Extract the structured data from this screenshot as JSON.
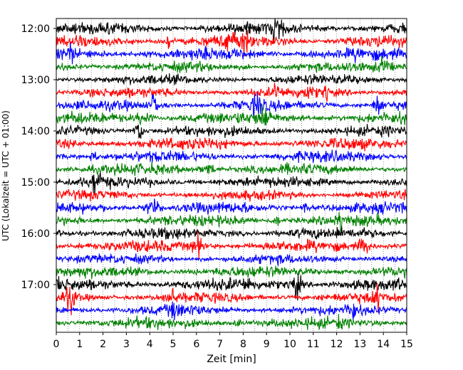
{
  "chart_data": {
    "type": "line",
    "title": "",
    "xlabel": "Zeit  [min]",
    "ylabel": "UTC (Lokalzeit = UTC + 01:00)",
    "xlim": [
      0,
      15
    ],
    "x_ticks": [
      0,
      1,
      2,
      3,
      4,
      5,
      6,
      7,
      8,
      9,
      10,
      11,
      12,
      13,
      14,
      15
    ],
    "y_ticks": [
      "12:00",
      "13:00",
      "14:00",
      "15:00",
      "16:00",
      "17:00"
    ],
    "trace_start": "12:00",
    "trace_end": "17:45",
    "trace_interval_min": 15,
    "color_cycle": [
      "#000000",
      "#ff0000",
      "#0000ff",
      "#008000"
    ],
    "vertical_gridlines": "dotted, every 0.5 min",
    "legend": "none"
  }
}
